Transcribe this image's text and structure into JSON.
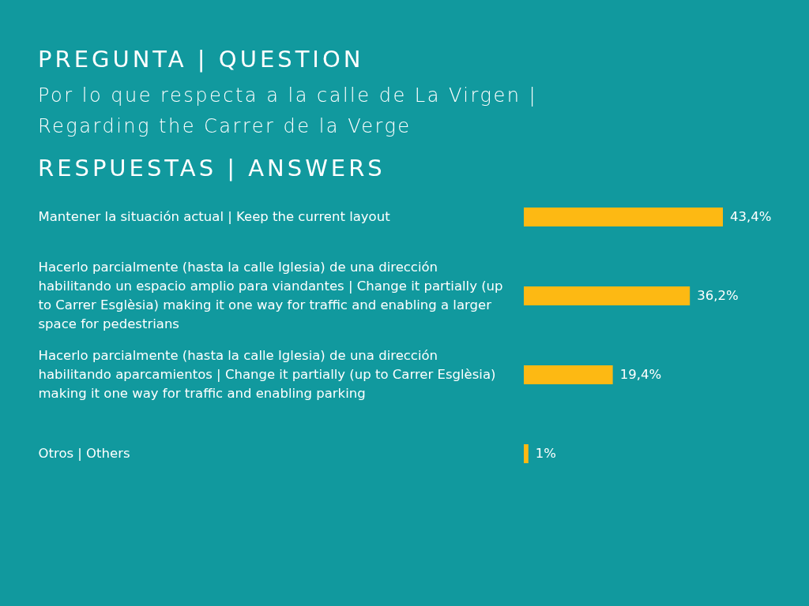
{
  "chart_data": {
    "type": "bar",
    "orientation": "horizontal",
    "title": "PREGUNTA | QUESTION",
    "subtitle": "Por lo que respecta a la calle de La Virgen | Regarding the Carrer de la Verge",
    "annotations": [
      "RESPUESTAS | ANSWERS"
    ],
    "categories": [
      "Mantener la situación actual | Keep the current layout",
      "Hacerlo parcialmente (hasta la calle Iglesia) de una dirección habilitando un espacio amplio para viandantes | Change it partially (up to Carrer Esglèsia) making it one way for traffic and enabling a larger space for pedestrians",
      "Hacerlo parcialmente (hasta la calle Iglesia) de una dirección habilitando aparcamientos | Change it partially (up to Carrer Esglèsia) making it one way for traffic and enabling parking",
      "Otros | Others"
    ],
    "values": [
      43.4,
      36.2,
      19.4,
      1
    ],
    "value_labels": [
      "43,4%",
      "36,2%",
      "19,4%",
      "1%"
    ],
    "color": "#fdb913"
  }
}
